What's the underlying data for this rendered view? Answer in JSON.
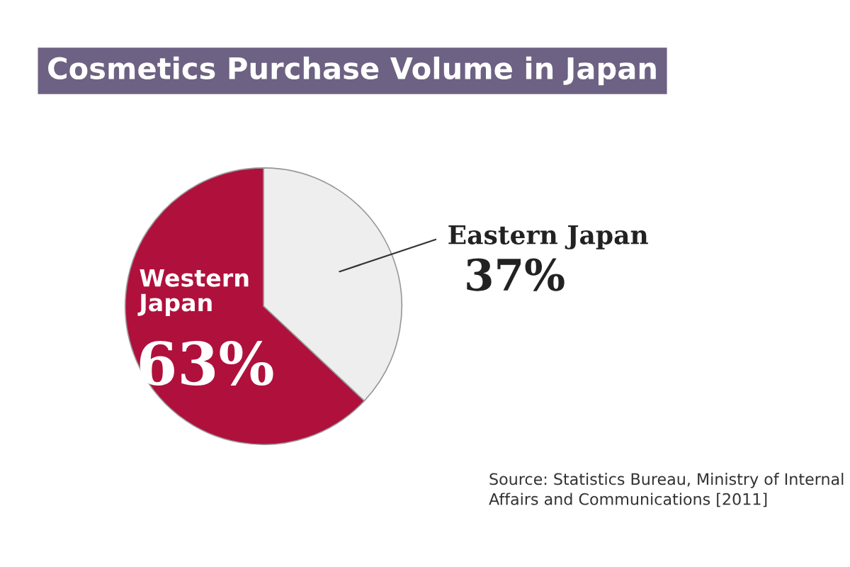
{
  "chart_data": {
    "type": "pie",
    "title": "Cosmetics Purchase Volume in Japan",
    "categories": [
      "Eastern Japan",
      "Western Japan"
    ],
    "values": [
      37,
      63
    ],
    "value_labels": [
      "37%",
      "63%"
    ],
    "colors": [
      "#eeeeee",
      "#b0103c"
    ],
    "annotations": [
      "Source: Statistics Bureau, Ministry of Internal\nAffairs and Communications [2011]"
    ],
    "legend": false
  }
}
